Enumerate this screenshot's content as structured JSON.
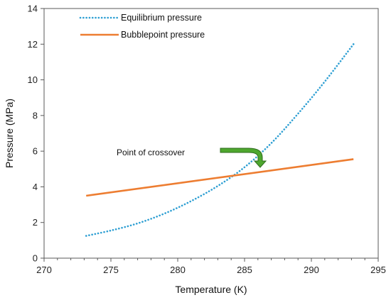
{
  "chart_data": {
    "type": "line",
    "xlabel": "Temperature (K)",
    "ylabel": "Pressure (MPa)",
    "xlim": [
      270,
      295
    ],
    "ylim": [
      0,
      14
    ],
    "xticks": [
      270,
      275,
      280,
      285,
      290,
      295
    ],
    "yticks": [
      0,
      2,
      4,
      6,
      8,
      10,
      12,
      14
    ],
    "grid": false,
    "legend": "top-left",
    "series": [
      {
        "name": "Equilibrium pressure",
        "style": "dotted",
        "color": "#2E9FD3",
        "x": [
          273.15,
          275,
          277,
          279,
          281,
          283,
          285,
          287,
          289,
          291,
          293.15
        ],
        "y": [
          1.25,
          1.55,
          1.95,
          2.5,
          3.2,
          4.05,
          5.1,
          6.45,
          8.1,
          9.9,
          12.0
        ]
      },
      {
        "name": "Bubblepoint pressure",
        "style": "solid",
        "color": "#ED7D31",
        "x": [
          273.15,
          293.15
        ],
        "y": [
          3.5,
          5.55
        ]
      }
    ],
    "annotations": [
      {
        "text": "Point of crossover",
        "x": 284.8,
        "y": 4.7,
        "arrow_color": "#4EA72E"
      }
    ]
  }
}
